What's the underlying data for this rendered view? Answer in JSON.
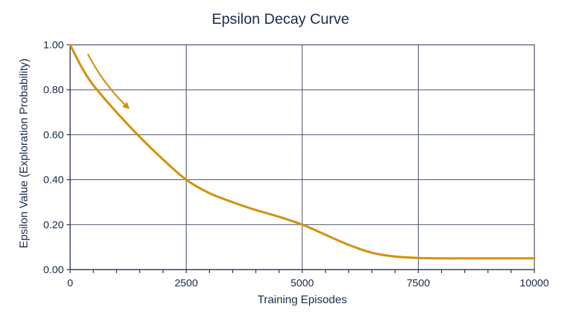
{
  "chart_data": {
    "type": "line",
    "title": "Epsilon Decay Curve",
    "xlabel": "Training Episodes",
    "ylabel": "Epsilon Value (Exploration Probability)",
    "xlim": [
      0,
      10000
    ],
    "ylim": [
      0,
      1
    ],
    "x_ticks": [
      0,
      2500,
      5000,
      7500,
      10000
    ],
    "x_tick_labels": [
      "0",
      "2500",
      "5000",
      "7500",
      "10000"
    ],
    "y_ticks": [
      0,
      0.2,
      0.4,
      0.6,
      0.8,
      1.0
    ],
    "y_tick_labels": [
      "0.00",
      "0.20",
      "0.40",
      "0.60",
      "0.80",
      "1.00"
    ],
    "grid": true,
    "series": [
      {
        "color": "#d4900e",
        "x": [
          0,
          250,
          500,
          1000,
          1500,
          2000,
          2500,
          3000,
          3500,
          4000,
          4500,
          5000,
          5500,
          6000,
          6500,
          7000,
          7500,
          8000,
          8500,
          9000,
          9500,
          10000
        ],
        "y": [
          1.0,
          0.9,
          0.82,
          0.7,
          0.59,
          0.49,
          0.4,
          0.34,
          0.3,
          0.265,
          0.235,
          0.2,
          0.155,
          0.11,
          0.075,
          0.058,
          0.052,
          0.05,
          0.05,
          0.05,
          0.05,
          0.05
        ]
      }
    ],
    "annotations": [
      {
        "type": "arrow",
        "color": "#d4900e",
        "from": [
          380,
          0.96
        ],
        "to": [
          1250,
          0.72
        ]
      }
    ]
  }
}
